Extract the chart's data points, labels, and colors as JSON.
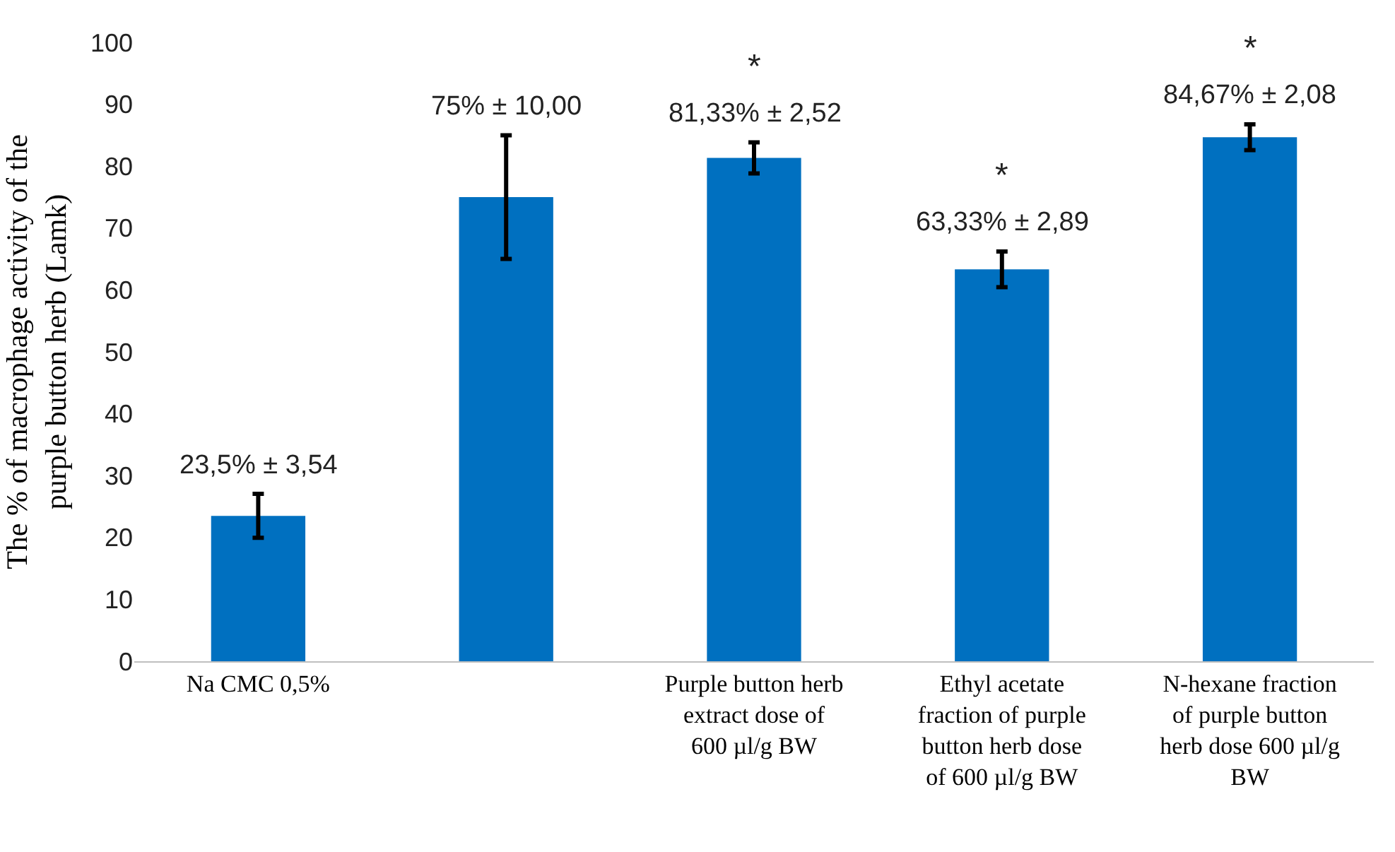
{
  "chart_data": {
    "type": "bar",
    "ylabel": "The % of macrophage activity of the purple button herb (Lamk)",
    "categories": [
      "Na CMC 0,5%",
      null,
      "Purple button herb extract dose of 600 µl/g BW",
      "Ethyl acetate fraction of purple button herb dose of 600 µl/g BW",
      "N-hexane fraction of purple button herb dose 600 µl/g BW"
    ],
    "values": [
      23.5,
      75,
      81.33,
      63.33,
      84.67
    ],
    "errors": [
      3.54,
      10,
      2.52,
      2.89,
      2.08
    ],
    "value_labels": [
      "23,5% ± 3,54",
      "75% ± 10,00",
      "81,33% ± 2,52",
      "63,33% ± 2,89",
      "84,67% ± 2,08"
    ],
    "color": "#0070c0",
    "ylim": [
      0,
      100
    ],
    "yticks": [
      0,
      10,
      20,
      30,
      40,
      50,
      60,
      70,
      80,
      90,
      100
    ],
    "grid": false,
    "annotations": [
      {
        "text": "*",
        "x": "Purple button herb extract dose of 600 µl/g BW",
        "y": 83.85
      },
      {
        "text": "*",
        "x": "Ethyl acetate fraction of purple button herb dose of 600 µl/g BW",
        "y": 66.22
      },
      {
        "text": "*",
        "x": "N-hexane fraction of purple button herb dose 600 µl/g BW",
        "y": 86.75
      }
    ]
  }
}
